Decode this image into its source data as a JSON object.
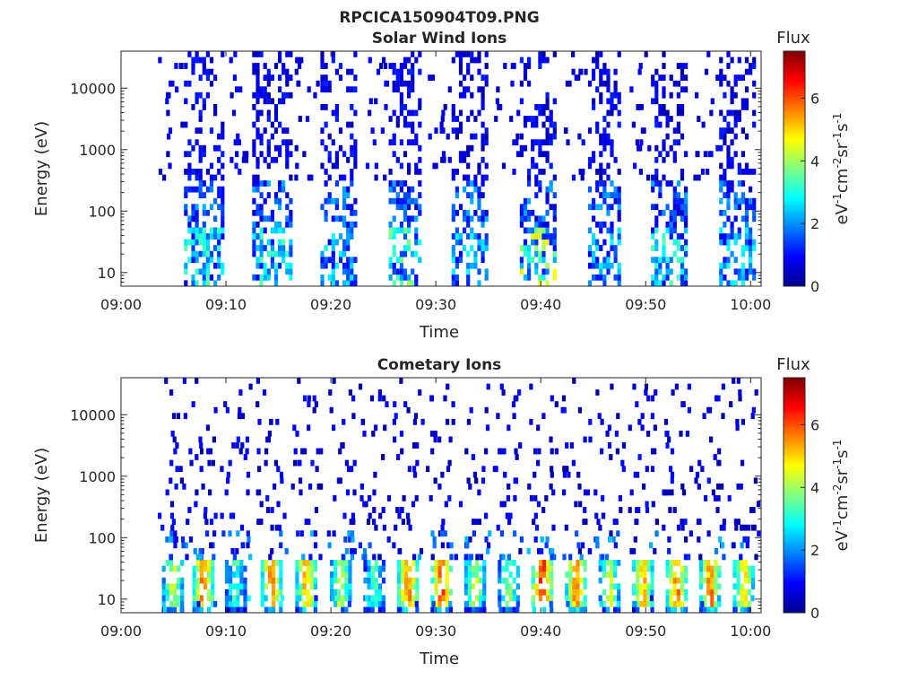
{
  "figure": {
    "title": "RPCICA150904T09.PNG",
    "background": "#ffffff"
  },
  "colormap": {
    "name": "jet",
    "stops": [
      "#00008f",
      "#0000ff",
      "#0080ff",
      "#00ffff",
      "#80ff80",
      "#ffff00",
      "#ff8000",
      "#ff0000",
      "#800000"
    ]
  },
  "chart_data": [
    {
      "type": "heatmap",
      "title": "Solar Wind Ions",
      "xlabel": "Time",
      "ylabel": "Energy (eV)",
      "x_ticks": [
        "09:00",
        "09:10",
        "09:20",
        "09:30",
        "09:40",
        "09:50",
        "10:00"
      ],
      "x_range_minutes": [
        0,
        61
      ],
      "y_scale": "log",
      "y_ticks": [
        10,
        100,
        1000,
        10000
      ],
      "y_tick_labels": [
        "10",
        "100",
        "1000",
        "10000"
      ],
      "y_range": [
        6,
        40000
      ],
      "colorbar": {
        "title": "Flux",
        "label": "eV-1cm-2sr-1s-1",
        "range": [
          0,
          7.5
        ],
        "ticks": [
          0,
          2,
          4,
          6
        ]
      },
      "bands": [
        {
          "start_min": 6.0,
          "end_min": 9.5,
          "max_flux": 3.5
        },
        {
          "start_min": 12.5,
          "end_min": 16.0,
          "max_flux": 3.5
        },
        {
          "start_min": 19.0,
          "end_min": 22.5,
          "max_flux": 3.0
        },
        {
          "start_min": 25.5,
          "end_min": 28.5,
          "max_flux": 4.0
        },
        {
          "start_min": 31.5,
          "end_min": 35.0,
          "max_flux": 3.0
        },
        {
          "start_min": 38.0,
          "end_min": 41.5,
          "max_flux": 5.0
        },
        {
          "start_min": 44.5,
          "end_min": 47.5,
          "max_flux": 3.0
        },
        {
          "start_min": 50.5,
          "end_min": 54.0,
          "max_flux": 3.5
        },
        {
          "start_min": 57.0,
          "end_min": 60.5,
          "max_flux": 3.0
        }
      ]
    },
    {
      "type": "heatmap",
      "title": "Cometary Ions",
      "xlabel": "Time",
      "ylabel": "Energy (eV)",
      "x_ticks": [
        "09:00",
        "09:10",
        "09:20",
        "09:30",
        "09:40",
        "09:50",
        "10:00"
      ],
      "x_range_minutes": [
        0,
        61
      ],
      "y_scale": "log",
      "y_ticks": [
        10,
        100,
        1000,
        10000
      ],
      "y_tick_labels": [
        "10",
        "100",
        "1000",
        "10000"
      ],
      "y_range": [
        6,
        40000
      ],
      "colorbar": {
        "title": "Flux",
        "label": "eV-1cm-2sr-1s-1",
        "range": [
          0,
          7.5
        ],
        "ticks": [
          0,
          2,
          4,
          6
        ]
      },
      "hotspots": [
        {
          "time_min": 4.8,
          "max_flux": 5.0
        },
        {
          "time_min": 7.7,
          "max_flux": 6.5
        },
        {
          "time_min": 10.8,
          "max_flux": 4.0
        },
        {
          "time_min": 14.2,
          "max_flux": 6.5
        },
        {
          "time_min": 17.5,
          "max_flux": 6.0
        },
        {
          "time_min": 20.8,
          "max_flux": 5.0
        },
        {
          "time_min": 24.0,
          "max_flux": 4.0
        },
        {
          "time_min": 27.2,
          "max_flux": 6.5
        },
        {
          "time_min": 30.4,
          "max_flux": 7.0
        },
        {
          "time_min": 33.6,
          "max_flux": 5.0
        },
        {
          "time_min": 36.8,
          "max_flux": 4.5
        },
        {
          "time_min": 40.0,
          "max_flux": 7.2
        },
        {
          "time_min": 43.2,
          "max_flux": 6.5
        },
        {
          "time_min": 46.4,
          "max_flux": 5.0
        },
        {
          "time_min": 49.6,
          "max_flux": 6.0
        },
        {
          "time_min": 52.8,
          "max_flux": 6.5
        },
        {
          "time_min": 56.0,
          "max_flux": 6.5
        },
        {
          "time_min": 59.2,
          "max_flux": 5.5
        }
      ]
    }
  ]
}
